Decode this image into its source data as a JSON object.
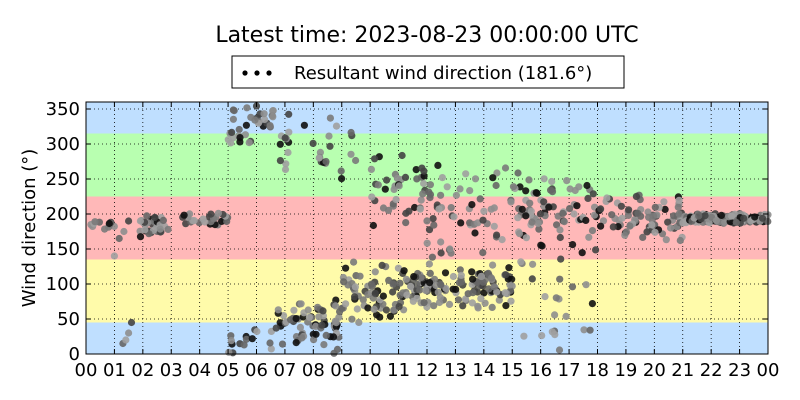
{
  "chart_data": {
    "type": "scatter",
    "title": "Latest time: 2023-08-23 00:00:00 UTC",
    "xlabel": "",
    "ylabel": "Wind direction (°)",
    "xlim": [
      0,
      24
    ],
    "ylim": [
      0,
      360
    ],
    "xticks": [
      "00",
      "01",
      "02",
      "03",
      "04",
      "05",
      "06",
      "07",
      "08",
      "09",
      "10",
      "11",
      "12",
      "13",
      "14",
      "15",
      "16",
      "17",
      "18",
      "19",
      "20",
      "21",
      "22",
      "23",
      "00"
    ],
    "yticks": [
      0,
      50,
      100,
      150,
      200,
      250,
      300,
      350
    ],
    "grid": true,
    "legend": {
      "position": "top-center",
      "label": "Resultant wind direction (181.6°)"
    },
    "background_bands": [
      {
        "from": 0,
        "to": 45,
        "color": "#bfdfff"
      },
      {
        "from": 45,
        "to": 135,
        "color": "#fffbaa"
      },
      {
        "from": 135,
        "to": 225,
        "color": "#ffb8b8"
      },
      {
        "from": 225,
        "to": 315,
        "color": "#b8ffb0"
      },
      {
        "from": 315,
        "to": 360,
        "color": "#bfdfff"
      }
    ],
    "segments": [
      {
        "t0": 0.0,
        "t1": 1.0,
        "n": 12,
        "kind": "line",
        "y0": 180,
        "y1": 190,
        "spread": 8
      },
      {
        "t0": 1.0,
        "t1": 1.5,
        "n": 4,
        "kind": "pts",
        "ys": [
          140,
          165,
          175,
          190
        ]
      },
      {
        "t0": 1.3,
        "t1": 1.6,
        "n": 4,
        "kind": "pts",
        "ys": [
          15,
          20,
          30,
          45
        ]
      },
      {
        "t0": 1.8,
        "t1": 3.0,
        "n": 34,
        "kind": "band",
        "y0": 170,
        "y1": 195,
        "spread": 15
      },
      {
        "t0": 3.0,
        "t1": 5.0,
        "n": 28,
        "kind": "line",
        "y0": 185,
        "y1": 200,
        "spread": 5
      },
      {
        "t0": 5.0,
        "t1": 6.6,
        "n": 34,
        "kind": "wrap",
        "ylo": 300,
        "yhi": 360
      },
      {
        "t0": 5.0,
        "t1": 6.8,
        "n": 14,
        "kind": "band",
        "y0": 5,
        "y1": 30,
        "spread": 20
      },
      {
        "t0": 6.5,
        "t1": 9.0,
        "n": 70,
        "kind": "band",
        "y0": 20,
        "y1": 60,
        "spread": 40
      },
      {
        "t0": 6.8,
        "t1": 9.8,
        "n": 30,
        "kind": "band",
        "y0": 270,
        "y1": 340,
        "spread": 40
      },
      {
        "t0": 9.0,
        "t1": 11.0,
        "n": 60,
        "kind": "band",
        "y0": 60,
        "y1": 110,
        "spread": 50
      },
      {
        "t0": 10.0,
        "t1": 12.0,
        "n": 40,
        "kind": "band",
        "y0": 200,
        "y1": 270,
        "spread": 50
      },
      {
        "t0": 11.0,
        "t1": 15.0,
        "n": 140,
        "kind": "band",
        "y0": 80,
        "y1": 110,
        "spread": 40
      },
      {
        "t0": 12.0,
        "t1": 16.5,
        "n": 80,
        "kind": "band",
        "y0": 150,
        "y1": 250,
        "spread": 70
      },
      {
        "t0": 15.0,
        "t1": 18.0,
        "n": 60,
        "kind": "band",
        "y0": 160,
        "y1": 240,
        "spread": 60
      },
      {
        "t0": 15.0,
        "t1": 18.0,
        "n": 18,
        "kind": "band",
        "y0": 20,
        "y1": 100,
        "spread": 50
      },
      {
        "t0": 18.0,
        "t1": 21.0,
        "n": 80,
        "kind": "band",
        "y0": 170,
        "y1": 215,
        "spread": 30
      },
      {
        "t0": 21.0,
        "t1": 24.0,
        "n": 170,
        "kind": "band",
        "y0": 195,
        "y1": 192,
        "spread": 12
      }
    ],
    "marker_colors": [
      "#111111",
      "#444444",
      "#666666",
      "#7a7a7a",
      "#8e8e8e",
      "#a0a0a0"
    ]
  }
}
